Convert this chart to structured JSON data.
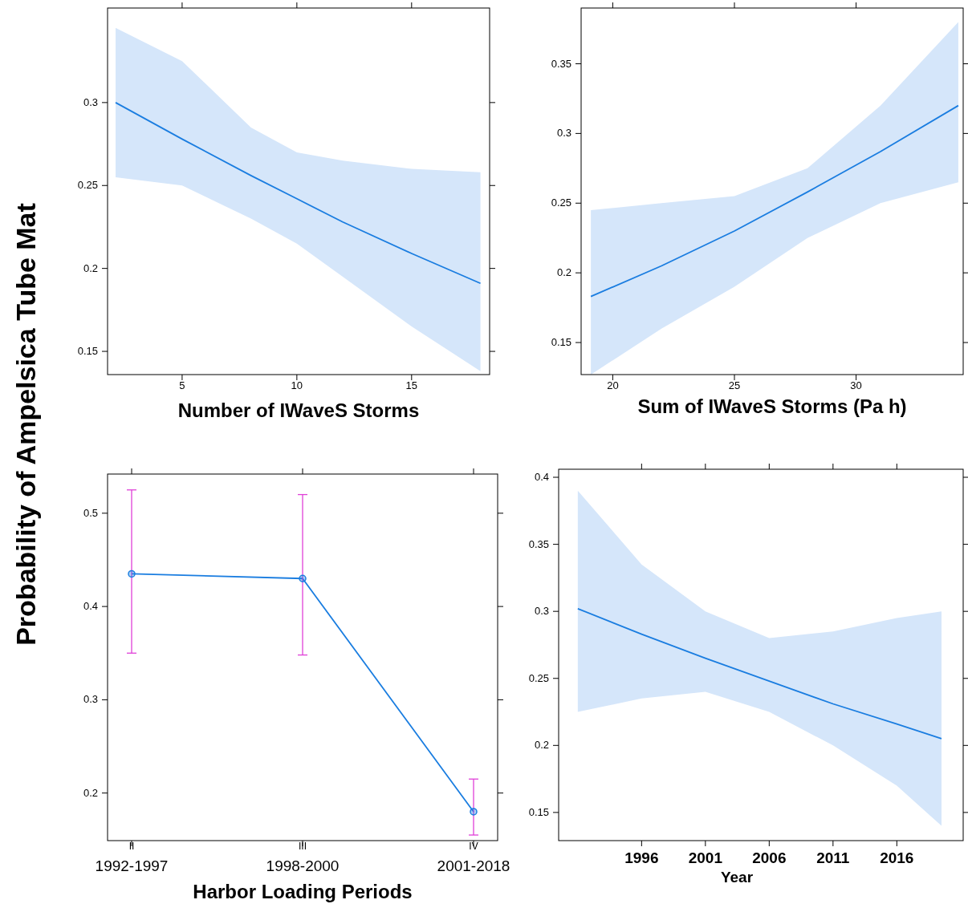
{
  "chart_data": [
    {
      "type": "line",
      "ylabel": "Probability of Ampelsica Tube Mat",
      "xlabel": "Number of IWaveS Storms",
      "xlim": [
        1.75,
        18.4
      ],
      "xticks": [
        5,
        10,
        15
      ],
      "ylim": [
        0.136,
        0.357
      ],
      "yticks": [
        0.15,
        0.2,
        0.25,
        0.3
      ],
      "grid": false,
      "series": [
        {
          "color": "#1a7de0",
          "x": [
            2.1,
            5,
            8,
            10,
            12,
            15,
            18
          ],
          "values": [
            0.3,
            0.278,
            0.256,
            0.242,
            0.228,
            0.209,
            0.191
          ],
          "lower": [
            0.255,
            0.25,
            0.23,
            0.215,
            0.195,
            0.165,
            0.138
          ],
          "upper": [
            0.345,
            0.325,
            0.285,
            0.27,
            0.265,
            0.26,
            0.258
          ]
        }
      ]
    },
    {
      "type": "line",
      "xlabel": "Sum of IWaveS Storms (Pa h)",
      "xlim": [
        18.7,
        34.4
      ],
      "xticks": [
        20,
        25,
        30
      ],
      "ylim": [
        0.127,
        0.39
      ],
      "yticks": [
        0.15,
        0.2,
        0.25,
        0.3,
        0.35
      ],
      "grid": false,
      "series": [
        {
          "color": "#1a7de0",
          "x": [
            19.1,
            22,
            25,
            28,
            31,
            34.2
          ],
          "values": [
            0.183,
            0.205,
            0.23,
            0.258,
            0.287,
            0.32
          ],
          "lower": [
            0.127,
            0.16,
            0.19,
            0.225,
            0.25,
            0.265
          ],
          "upper": [
            0.245,
            0.25,
            0.255,
            0.275,
            0.32,
            0.38
          ]
        }
      ]
    },
    {
      "type": "line",
      "xlabel": "Harbor Loading Periods",
      "categories": [
        "$^{II}$\n1992-1997",
        "$^{III}$\n1998-2000",
        "$^{IV}$\n2001-2018"
      ],
      "ylim": [
        0.149,
        0.542
      ],
      "yticks": [
        0.2,
        0.3,
        0.4,
        0.5
      ],
      "grid": false,
      "marker": "circle",
      "series": [
        {
          "color": "#1a7de0",
          "values": [
            0.435,
            0.43,
            0.18
          ],
          "errors": [
            [
              0.35,
              0.525
            ],
            [
              0.348,
              0.52
            ],
            [
              0.155,
              0.215
            ]
          ]
        }
      ]
    },
    {
      "type": "line",
      "xlabel": "Year",
      "xlim": [
        1989.5,
        2021.2
      ],
      "xticks": [
        1996,
        2001,
        2006,
        2011,
        2016
      ],
      "ylim": [
        0.129,
        0.406
      ],
      "yticks": [
        0.15,
        0.2,
        0.25,
        0.3,
        0.35,
        0.4
      ],
      "grid": false,
      "series": [
        {
          "color": "#1a7de0",
          "x": [
            1991,
            1996,
            2001,
            2006,
            2011,
            2016,
            2019.5
          ],
          "values": [
            0.302,
            0.283,
            0.265,
            0.248,
            0.231,
            0.216,
            0.205
          ],
          "lower": [
            0.225,
            0.235,
            0.24,
            0.225,
            0.2,
            0.17,
            0.14
          ],
          "upper": [
            0.39,
            0.335,
            0.3,
            0.28,
            0.285,
            0.295,
            0.3
          ]
        }
      ]
    }
  ]
}
